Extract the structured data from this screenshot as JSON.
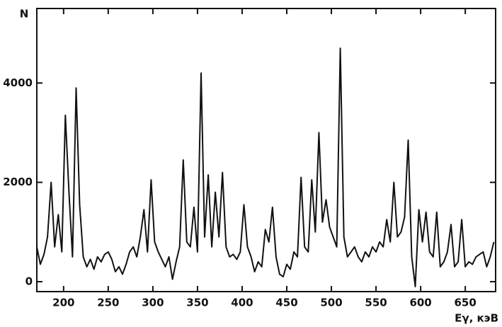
{
  "chart_data": {
    "type": "line",
    "y_label": "N",
    "x_label": "Eγ, кэВ",
    "color": "#111111",
    "xlim": [
      170,
      684
    ],
    "ylim": [
      -200,
      5500
    ],
    "xticks": [
      200,
      250,
      300,
      350,
      400,
      450,
      500,
      550,
      600,
      650
    ],
    "yticks": [
      0,
      2000,
      4000
    ],
    "x": [
      170,
      174,
      178,
      182,
      186,
      190,
      194,
      198,
      202,
      206,
      210,
      214,
      218,
      222,
      226,
      230,
      234,
      238,
      242,
      246,
      250,
      254,
      258,
      262,
      266,
      270,
      274,
      278,
      282,
      286,
      290,
      294,
      298,
      302,
      306,
      310,
      314,
      318,
      322,
      326,
      330,
      334,
      338,
      342,
      346,
      350,
      354,
      358,
      362,
      366,
      370,
      374,
      378,
      382,
      386,
      390,
      394,
      398,
      402,
      406,
      410,
      414,
      418,
      422,
      426,
      430,
      434,
      438,
      442,
      446,
      450,
      454,
      458,
      462,
      466,
      470,
      474,
      478,
      482,
      486,
      490,
      494,
      498,
      502,
      506,
      510,
      514,
      518,
      522,
      526,
      530,
      534,
      538,
      542,
      546,
      550,
      554,
      558,
      562,
      566,
      570,
      574,
      578,
      582,
      586,
      590,
      594,
      598,
      602,
      606,
      610,
      614,
      618,
      622,
      626,
      630,
      634,
      638,
      642,
      646,
      650,
      654,
      658,
      662,
      666,
      670,
      674,
      678,
      682
    ],
    "values": [
      700,
      350,
      550,
      900,
      2000,
      700,
      1350,
      600,
      3350,
      1800,
      500,
      3900,
      1550,
      500,
      300,
      450,
      250,
      500,
      400,
      550,
      600,
      450,
      200,
      300,
      150,
      350,
      600,
      700,
      500,
      900,
      1450,
      600,
      2050,
      800,
      600,
      450,
      300,
      500,
      50,
      400,
      700,
      2450,
      800,
      700,
      1500,
      600,
      4200,
      900,
      2150,
      700,
      1800,
      900,
      2200,
      700,
      500,
      550,
      450,
      600,
      1550,
      700,
      500,
      200,
      400,
      300,
      1050,
      800,
      1500,
      500,
      150,
      100,
      350,
      250,
      600,
      500,
      2100,
      700,
      600,
      2050,
      1000,
      3000,
      1200,
      1650,
      1100,
      900,
      700,
      4700,
      900,
      500,
      600,
      700,
      500,
      400,
      600,
      500,
      700,
      600,
      800,
      700,
      1250,
      800,
      2000,
      900,
      1000,
      1300,
      2850,
      500,
      -100,
      1450,
      800,
      1400,
      600,
      500,
      1400,
      300,
      400,
      600,
      1150,
      300,
      400,
      1250,
      300,
      400,
      350,
      500,
      550,
      600,
      300,
      500,
      800
    ]
  }
}
